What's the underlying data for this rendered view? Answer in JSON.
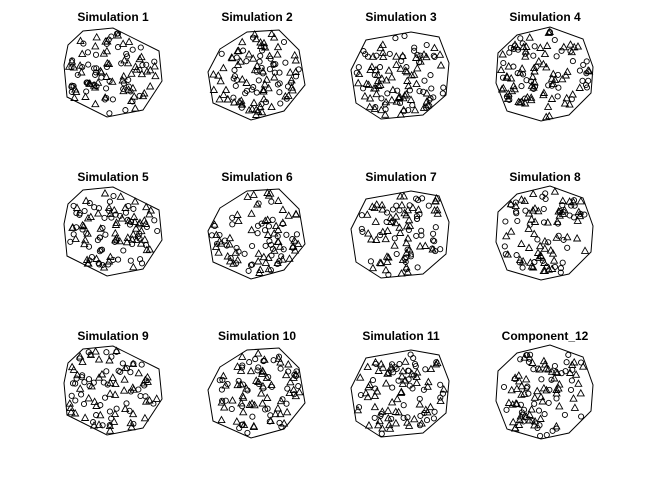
{
  "figure": {
    "background": "#ffffff",
    "ink": "#000000",
    "layout": "3x4 grid of small multiples"
  },
  "chart_data": [
    {
      "type": "scatter",
      "title": "Simulation 1",
      "window": "polygon",
      "marks": [
        "circle",
        "triangle"
      ],
      "axes": "none",
      "grid": false,
      "legend": "none"
    },
    {
      "type": "scatter",
      "title": "Simulation 2",
      "window": "polygon",
      "marks": [
        "circle",
        "triangle"
      ],
      "axes": "none",
      "grid": false,
      "legend": "none"
    },
    {
      "type": "scatter",
      "title": "Simulation 3",
      "window": "polygon",
      "marks": [
        "circle",
        "triangle"
      ],
      "axes": "none",
      "grid": false,
      "legend": "none"
    },
    {
      "type": "scatter",
      "title": "Simulation 4",
      "window": "polygon",
      "marks": [
        "circle",
        "triangle"
      ],
      "axes": "none",
      "grid": false,
      "legend": "none"
    },
    {
      "type": "scatter",
      "title": "Simulation 5",
      "window": "polygon",
      "marks": [
        "circle",
        "triangle"
      ],
      "axes": "none",
      "grid": false,
      "legend": "none"
    },
    {
      "type": "scatter",
      "title": "Simulation 6",
      "window": "polygon",
      "marks": [
        "circle",
        "triangle"
      ],
      "axes": "none",
      "grid": false,
      "legend": "none"
    },
    {
      "type": "scatter",
      "title": "Simulation 7",
      "window": "polygon",
      "marks": [
        "circle",
        "triangle"
      ],
      "axes": "none",
      "grid": false,
      "legend": "none"
    },
    {
      "type": "scatter",
      "title": "Simulation 8",
      "window": "polygon",
      "marks": [
        "circle",
        "triangle"
      ],
      "axes": "none",
      "grid": false,
      "legend": "none"
    },
    {
      "type": "scatter",
      "title": "Simulation 9",
      "window": "polygon",
      "marks": [
        "circle",
        "triangle"
      ],
      "axes": "none",
      "grid": false,
      "legend": "none"
    },
    {
      "type": "scatter",
      "title": "Simulation 10",
      "window": "polygon",
      "marks": [
        "circle",
        "triangle"
      ],
      "axes": "none",
      "grid": false,
      "legend": "none"
    },
    {
      "type": "scatter",
      "title": "Simulation 11",
      "window": "polygon",
      "marks": [
        "circle",
        "triangle"
      ],
      "axes": "none",
      "grid": false,
      "legend": "none"
    },
    {
      "type": "scatter",
      "title": "Component_12",
      "window": "polygon",
      "marks": [
        "circle",
        "triangle"
      ],
      "axes": "none",
      "grid": false,
      "legend": "none"
    }
  ]
}
